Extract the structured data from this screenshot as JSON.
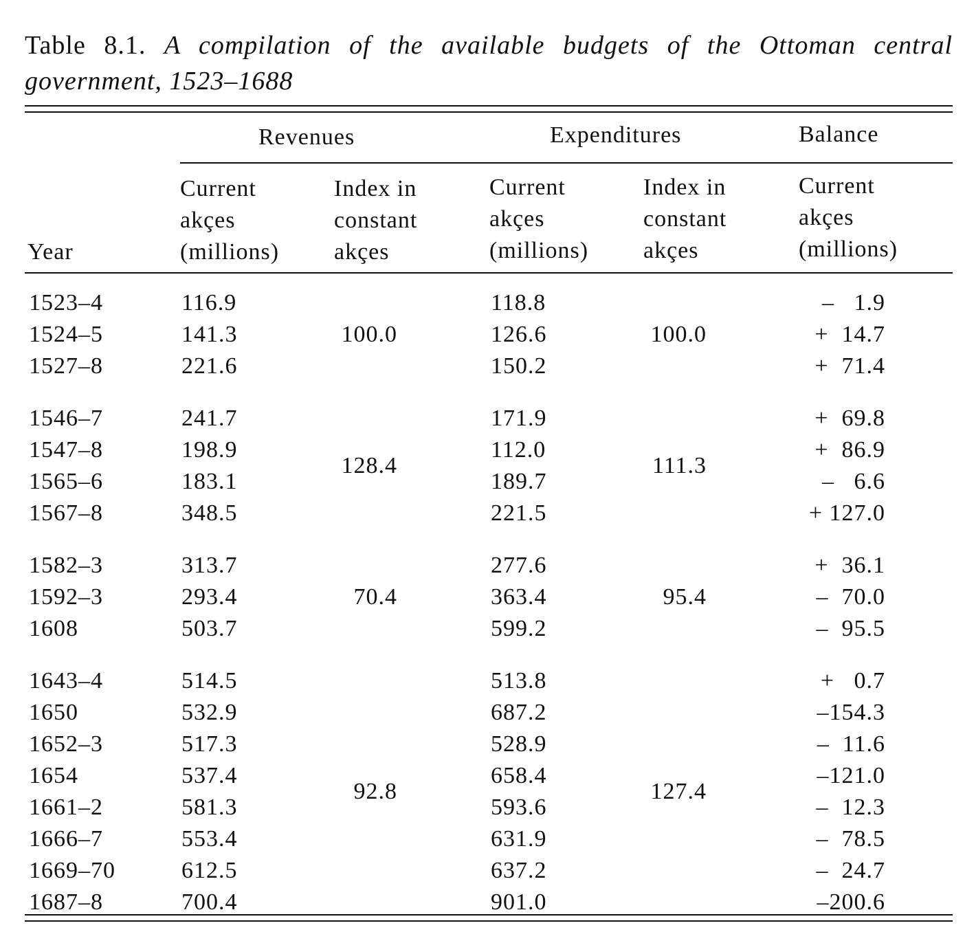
{
  "table": {
    "label": "Table 8.1.",
    "title": "A compilation of the available budgets of the Ottoman central government, 1523–1688",
    "header": {
      "year": "Year",
      "revenues": "Revenues",
      "expenditures": "Expenditures",
      "balance": "Balance",
      "rev_current": [
        "Current",
        "akçes",
        "(millions)"
      ],
      "rev_index": [
        "Index in",
        "constant",
        "akçes"
      ],
      "exp_current": [
        "Current",
        "akçes",
        "(millions)"
      ],
      "exp_index": [
        "Index in",
        "constant",
        "akçes"
      ],
      "bal_current": [
        "Current",
        "akçes",
        "(millions)"
      ]
    },
    "blocks": [
      {
        "rev_index": "100.0",
        "exp_index": "100.0",
        "rows": [
          {
            "year": "1523–4",
            "revenue": "116.9",
            "expenditure": "118.8",
            "balance": "–   1.9"
          },
          {
            "year": "1524–5",
            "revenue": "141.3",
            "expenditure": "126.6",
            "balance": "+  14.7"
          },
          {
            "year": "1527–8",
            "revenue": "221.6",
            "expenditure": "150.2",
            "balance": "+  71.4"
          }
        ]
      },
      {
        "rev_index": "128.4",
        "exp_index": "111.3",
        "rows": [
          {
            "year": "1546–7",
            "revenue": "241.7",
            "expenditure": "171.9",
            "balance": "+  69.8"
          },
          {
            "year": "1547–8",
            "revenue": "198.9",
            "expenditure": "112.0",
            "balance": "+  86.9"
          },
          {
            "year": "1565–6",
            "revenue": "183.1",
            "expenditure": "189.7",
            "balance": "–   6.6"
          },
          {
            "year": "1567–8",
            "revenue": "348.5",
            "expenditure": "221.5",
            "balance": "+ 127.0"
          }
        ]
      },
      {
        "rev_index": "70.4",
        "exp_index": "95.4",
        "rows": [
          {
            "year": "1582–3",
            "revenue": "313.7",
            "expenditure": "277.6",
            "balance": "+  36.1"
          },
          {
            "year": "1592–3",
            "revenue": "293.4",
            "expenditure": "363.4",
            "balance": "–  70.0"
          },
          {
            "year": "1608",
            "revenue": "503.7",
            "expenditure": "599.2",
            "balance": "–  95.5"
          }
        ]
      },
      {
        "rev_index": "92.8",
        "exp_index": "127.4",
        "rows": [
          {
            "year": "1643–4",
            "revenue": "514.5",
            "expenditure": "513.8",
            "balance": "+   0.7"
          },
          {
            "year": "1650",
            "revenue": "532.9",
            "expenditure": "687.2",
            "balance": "–154.3"
          },
          {
            "year": "1652–3",
            "revenue": "517.3",
            "expenditure": "528.9",
            "balance": "–  11.6"
          },
          {
            "year": "1654",
            "revenue": "537.4",
            "expenditure": "658.4",
            "balance": "–121.0"
          },
          {
            "year": "1661–2",
            "revenue": "581.3",
            "expenditure": "593.6",
            "balance": "–  12.3"
          },
          {
            "year": "1666–7",
            "revenue": "553.4",
            "expenditure": "631.9",
            "balance": "–  78.5"
          },
          {
            "year": "1669–70",
            "revenue": "612.5",
            "expenditure": "637.2",
            "balance": "–  24.7"
          },
          {
            "year": "1687–8",
            "revenue": "700.4",
            "expenditure": "901.0",
            "balance": "–200.6"
          }
        ]
      }
    ]
  }
}
